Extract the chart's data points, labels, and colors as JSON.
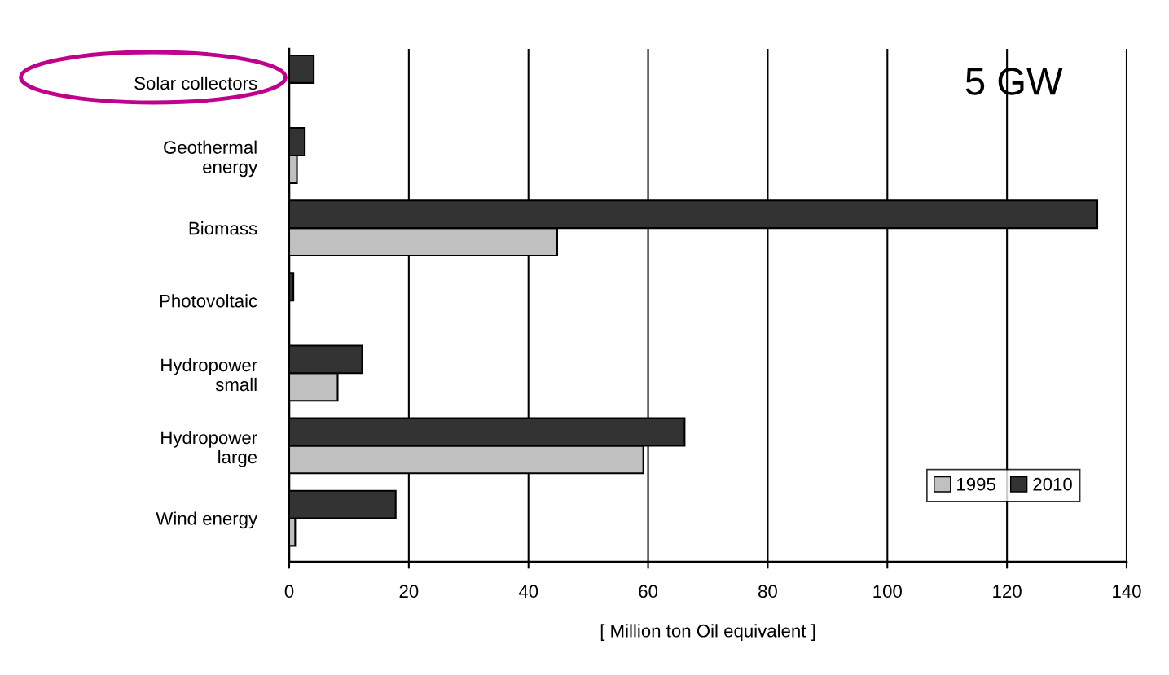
{
  "chart_data": {
    "type": "bar",
    "orientation": "horizontal",
    "categories": [
      "Solar collectors",
      "Geothermal\nenergy",
      "Biomass",
      "Photovoltaic",
      "Hydropower\nsmall",
      "Hydropower\nlarge",
      "Wind energy"
    ],
    "series": [
      {
        "name": "1995",
        "color": "#c0c0c0",
        "values": [
          null,
          1.3,
          44.8,
          null,
          8.1,
          59.2,
          1.0
        ]
      },
      {
        "name": "2010",
        "color": "#333333",
        "values": [
          4.1,
          2.6,
          135.1,
          0.7,
          12.2,
          66.1,
          17.8
        ]
      }
    ],
    "xlabel": "[ Million ton Oil equivalent ]",
    "xlim": [
      0,
      140
    ],
    "xticks": [
      0,
      20,
      40,
      60,
      80,
      100,
      120,
      140
    ],
    "grid": "x",
    "legend": "bottom right",
    "annotations": [
      "5 GW"
    ]
  }
}
